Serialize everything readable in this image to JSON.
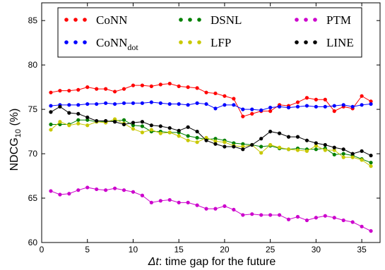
{
  "chart_data": {
    "type": "line",
    "xlabel": "Δt: time gap for the future",
    "xlabel_italic": "Δt",
    "xlabel_rest": ": time gap for the future",
    "ylabel": "NDCG10 (%)",
    "ylabel_main": "NDCG",
    "ylabel_sub": "10",
    "ylabel_rest": " (%)",
    "xlim": [
      0,
      37
    ],
    "ylim": [
      60,
      87
    ],
    "xticks": [
      0,
      5,
      10,
      15,
      20,
      25,
      30,
      35
    ],
    "yticks": [
      60,
      65,
      70,
      75,
      80,
      85
    ],
    "grid": false,
    "legend_position": "top",
    "x": [
      1,
      2,
      3,
      4,
      5,
      6,
      7,
      8,
      9,
      10,
      11,
      12,
      13,
      14,
      15,
      16,
      17,
      18,
      19,
      20,
      21,
      22,
      23,
      24,
      25,
      26,
      27,
      28,
      29,
      30,
      31,
      32,
      33,
      34,
      35,
      36
    ],
    "series": [
      {
        "name": "CoNN",
        "name_sub": "",
        "color": "#ff0000",
        "values": [
          76.9,
          77.1,
          77.1,
          77.2,
          77.5,
          77.3,
          77.3,
          77.0,
          77.3,
          77.7,
          77.7,
          77.6,
          77.8,
          77.9,
          77.6,
          77.5,
          77.4,
          76.9,
          76.8,
          76.5,
          76.2,
          74.2,
          74.5,
          74.8,
          74.8,
          75.5,
          75.4,
          75.8,
          76.3,
          76.1,
          76.1,
          74.8,
          75.3,
          75.1,
          76.5,
          75.9
        ]
      },
      {
        "name": "CoNN",
        "name_sub": "dot",
        "color": "#0000ff",
        "values": [
          75.4,
          75.5,
          75.5,
          75.5,
          75.6,
          75.6,
          75.7,
          75.6,
          75.7,
          75.7,
          75.7,
          75.8,
          75.7,
          75.6,
          75.6,
          75.5,
          75.7,
          75.6,
          75.1,
          75.5,
          75.5,
          75.0,
          75.0,
          74.9,
          75.2,
          75.3,
          75.2,
          75.3,
          75.4,
          75.3,
          75.3,
          75.4,
          75.5,
          75.3,
          75.5,
          75.6
        ]
      },
      {
        "name": "DSNL",
        "name_sub": "",
        "color": "#008000",
        "values": [
          73.3,
          73.3,
          73.3,
          73.8,
          73.8,
          73.6,
          73.6,
          73.7,
          73.8,
          73.2,
          73.1,
          72.5,
          72.5,
          72.4,
          72.4,
          72.0,
          71.8,
          71.6,
          71.7,
          71.5,
          71.2,
          71.1,
          71.0,
          70.8,
          70.9,
          70.6,
          70.5,
          70.6,
          70.5,
          70.5,
          70.6,
          69.9,
          70.0,
          69.8,
          69.4,
          69.0
        ]
      },
      {
        "name": "LFP",
        "name_sub": "",
        "color": "#c8c800",
        "values": [
          72.7,
          73.6,
          73.2,
          73.4,
          73.2,
          73.6,
          73.5,
          73.9,
          73.4,
          72.8,
          72.4,
          72.7,
          72.3,
          72.4,
          72.0,
          71.5,
          71.3,
          71.8,
          71.4,
          71.3,
          70.9,
          70.8,
          71.0,
          70.1,
          71.0,
          70.7,
          70.5,
          70.4,
          70.3,
          70.9,
          70.4,
          70.4,
          69.6,
          69.6,
          69.3,
          68.6
        ]
      },
      {
        "name": "PTM",
        "name_sub": "",
        "color": "#cc00cc",
        "values": [
          65.8,
          65.4,
          65.5,
          65.9,
          66.2,
          66.0,
          65.9,
          66.1,
          65.9,
          65.7,
          65.3,
          64.5,
          64.7,
          64.8,
          64.5,
          64.5,
          64.2,
          63.8,
          63.8,
          64.1,
          63.7,
          63.1,
          63.2,
          63.1,
          63.1,
          63.1,
          62.6,
          62.9,
          62.5,
          62.8,
          63.0,
          62.8,
          62.5,
          62.3,
          61.8,
          61.3
        ]
      },
      {
        "name": "LINE",
        "name_sub": "",
        "color": "#000000",
        "values": [
          74.7,
          75.3,
          74.6,
          74.5,
          74.1,
          73.7,
          73.7,
          73.6,
          73.3,
          73.5,
          73.6,
          73.2,
          73.1,
          72.9,
          72.6,
          73.0,
          72.5,
          71.5,
          71.1,
          70.8,
          70.8,
          70.5,
          71.0,
          71.7,
          72.5,
          72.3,
          71.9,
          71.9,
          71.5,
          71.2,
          71.0,
          70.7,
          70.5,
          70.0,
          70.3,
          69.8
        ]
      }
    ]
  }
}
